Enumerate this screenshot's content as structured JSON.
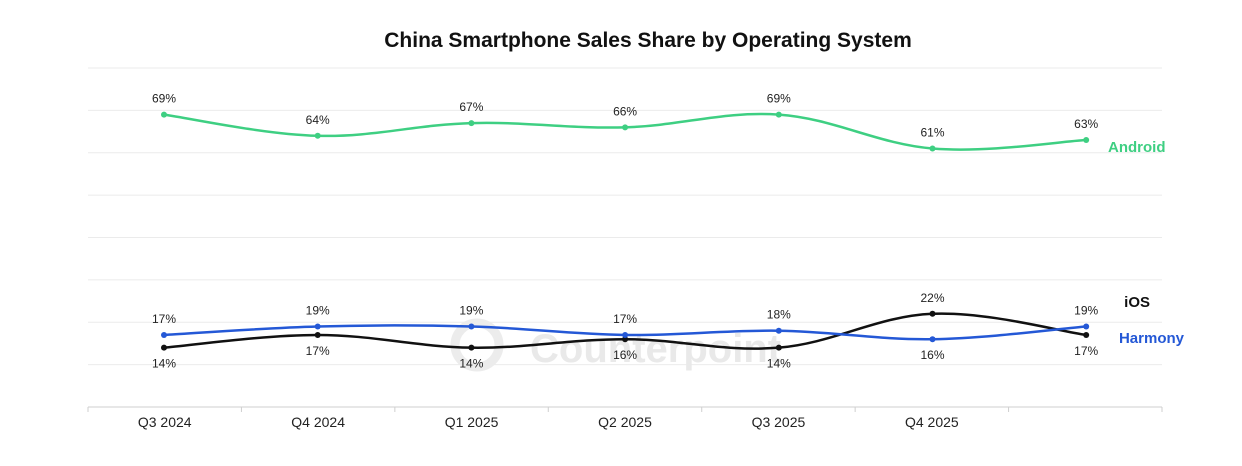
{
  "chart_data": {
    "type": "line",
    "title": "China Smartphone Sales Share by Operating System",
    "categories": [
      "Q3 2024",
      "Q4 2024",
      "Q1 2025",
      "Q2 2025",
      "Q3 2025",
      "Q4 2025",
      ""
    ],
    "ylim": [
      0,
      80
    ],
    "grid": true,
    "legend": "inline labels at right end of each line",
    "series": [
      {
        "name": "Android",
        "values": [
          69,
          64,
          67,
          66,
          69,
          61,
          63
        ],
        "labels": [
          "69%",
          "64%",
          "67%",
          "66%",
          "69%",
          "61%",
          "63%"
        ],
        "color": "#3ecf82"
      },
      {
        "name": "iOS",
        "values": [
          14,
          17,
          14,
          16,
          14,
          22,
          17
        ],
        "labels": [
          "14%",
          "17%",
          "14%",
          "16%",
          "14%",
          "22%",
          "17%"
        ],
        "color": "#111111"
      },
      {
        "name": "Harmony",
        "values": [
          17,
          19,
          19,
          17,
          18,
          16,
          19
        ],
        "labels": [
          "17%",
          "19%",
          "19%",
          "17%",
          "18%",
          "16%",
          "19%"
        ],
        "color": "#2458d6"
      }
    ]
  },
  "watermark": "Counterpoint"
}
